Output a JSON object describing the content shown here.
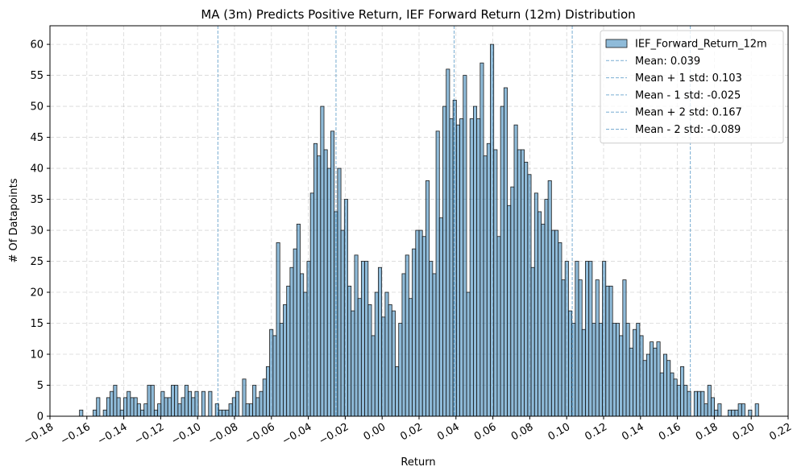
{
  "chart_data": {
    "type": "histogram",
    "title": "MA (3m) Predicts Positive Return, IEF Forward Return (12m) Distribution",
    "x_label": "Return",
    "y_label": "# Of Datapoints",
    "bins": [
      -0.164,
      -0.16216,
      -0.16032,
      -0.15848,
      -0.15664,
      -0.1548,
      -0.15296,
      -0.15112,
      -0.14928,
      -0.14744,
      -0.1456,
      -0.14376,
      -0.14192,
      -0.14008,
      -0.13824,
      -0.1364,
      -0.13456,
      -0.13272,
      -0.13088,
      -0.12904,
      -0.1272,
      -0.12536,
      -0.12352,
      -0.12168,
      -0.11984,
      -0.118,
      -0.11616,
      -0.11432,
      -0.11248,
      -0.11064,
      -0.1088,
      -0.10696,
      -0.10512,
      -0.10328,
      -0.10144,
      -0.0996,
      -0.09776,
      -0.09592,
      -0.09408,
      -0.09224,
      -0.0904,
      -0.08856,
      -0.08672,
      -0.08488,
      -0.08304,
      -0.0812,
      -0.07936,
      -0.07752,
      -0.07568,
      -0.07384,
      -0.072,
      -0.07016,
      -0.06832,
      -0.06648,
      -0.06464,
      -0.0628,
      -0.06096,
      -0.05912,
      -0.05728,
      -0.05544,
      -0.0536,
      -0.05176,
      -0.04992,
      -0.04808,
      -0.04624,
      -0.0444,
      -0.04256,
      -0.04072,
      -0.03888,
      -0.03704,
      -0.0352,
      -0.03336,
      -0.03152,
      -0.02968,
      -0.02784,
      -0.026,
      -0.02416,
      -0.02232,
      -0.02048,
      -0.01864,
      -0.0168,
      -0.01496,
      -0.01312,
      -0.01128,
      -0.00944,
      -0.0076,
      -0.00576,
      -0.00392,
      -0.00208,
      -0.00024,
      0.0016,
      0.00344,
      0.00528,
      0.00712,
      0.00896,
      0.0108,
      0.01264,
      0.01448,
      0.01632,
      0.01816,
      0.02,
      0.02184,
      0.02368,
      0.02552,
      0.02736,
      0.0292,
      0.03104,
      0.03288,
      0.03472,
      0.03656,
      0.0384,
      0.04024,
      0.04208,
      0.04392,
      0.04576,
      0.0476,
      0.04944,
      0.05128,
      0.05312,
      0.05496,
      0.0568,
      0.05864,
      0.06048,
      0.06232,
      0.06416,
      0.066,
      0.06784,
      0.06968,
      0.07152,
      0.07336,
      0.0752,
      0.07704,
      0.07888,
      0.08072,
      0.08256,
      0.0844,
      0.08624,
      0.08808,
      0.08992,
      0.09176,
      0.0936,
      0.09544,
      0.09728,
      0.09912,
      0.10096,
      0.1028,
      0.10464,
      0.10648,
      0.10832,
      0.11016,
      0.112,
      0.11384,
      0.11568,
      0.11752,
      0.11936,
      0.1212,
      0.12304,
      0.12488,
      0.12672,
      0.12856,
      0.1304,
      0.13224,
      0.13408,
      0.13592,
      0.13776,
      0.1396,
      0.14144,
      0.14328,
      0.14512,
      0.14696,
      0.1488,
      0.15064,
      0.15248,
      0.15432,
      0.15616,
      0.158,
      0.15984,
      0.16168,
      0.16352,
      0.16536,
      0.1672,
      0.16904,
      0.17088,
      0.17272,
      0.17456,
      0.1764,
      0.17824,
      0.18008,
      0.18192,
      0.18376,
      0.1856,
      0.18744,
      0.18928,
      0.19112,
      0.19296,
      0.1948,
      0.19664,
      0.19848,
      0.20032,
      0.20216,
      0.204
    ],
    "series": [
      {
        "name": "IEF_Forward_Return_12m",
        "color": "#1f77b4",
        "edgecolor": "#1a1a1a",
        "values": [
          1,
          0,
          0,
          0,
          1,
          3,
          0,
          1,
          3,
          4,
          5,
          3,
          1,
          3,
          4,
          3,
          3,
          2,
          1,
          2,
          5,
          5,
          1,
          2,
          4,
          3,
          3,
          5,
          5,
          2,
          3,
          5,
          4,
          3,
          4,
          0,
          4,
          0,
          4,
          0,
          2,
          1,
          1,
          1,
          2,
          3,
          4,
          0,
          6,
          2,
          2,
          5,
          3,
          4,
          6,
          8,
          14,
          13,
          28,
          15,
          18,
          21,
          24,
          27,
          31,
          23,
          20,
          25,
          36,
          44,
          42,
          50,
          43,
          40,
          46,
          33,
          40,
          30,
          35,
          21,
          17,
          26,
          19,
          25,
          25,
          18,
          13,
          20,
          24,
          16,
          20,
          18,
          17,
          8,
          15,
          23,
          26,
          19,
          27,
          30,
          30,
          29,
          38,
          25,
          23,
          46,
          32,
          50,
          56,
          48,
          51,
          47,
          48,
          55,
          20,
          48,
          50,
          48,
          57,
          42,
          44,
          60,
          43,
          29,
          50,
          53,
          34,
          37,
          47,
          43,
          43,
          41,
          39,
          24,
          36,
          33,
          31,
          35,
          38,
          30,
          30,
          28,
          22,
          25,
          17,
          15,
          25,
          22,
          14,
          25,
          25,
          15,
          22,
          15,
          25,
          21,
          21,
          15,
          15,
          13,
          22,
          15,
          11,
          14,
          15,
          13,
          9,
          10,
          12,
          11,
          12,
          7,
          10,
          9,
          7,
          6,
          5,
          8,
          5,
          4,
          0,
          4,
          4,
          4,
          2,
          5,
          3,
          1,
          2,
          0,
          0,
          1,
          1,
          1,
          2,
          2,
          0,
          1,
          0,
          2
        ]
      }
    ],
    "vlines": [
      {
        "label": "Mean: 0.039",
        "value": 0.039,
        "color": "#1f77b4"
      },
      {
        "label": "Mean + 1 std: 0.103",
        "value": 0.103,
        "color": "#1f77b4"
      },
      {
        "label": "Mean - 1 std: -0.025",
        "value": -0.025,
        "color": "#1f77b4"
      },
      {
        "label": "Mean + 2 std: 0.167",
        "value": 0.167,
        "color": "#1f77b4"
      },
      {
        "label": "Mean - 2 std: -0.089",
        "value": -0.089,
        "color": "#1f77b4"
      }
    ],
    "xlim": [
      -0.18,
      0.22
    ],
    "xticks": [
      {
        "value": -0.18,
        "label": "−0.18"
      },
      {
        "value": -0.16,
        "label": "−0.16"
      },
      {
        "value": -0.14,
        "label": "−0.14"
      },
      {
        "value": -0.12,
        "label": "−0.12"
      },
      {
        "value": -0.1,
        "label": "−0.10"
      },
      {
        "value": -0.08,
        "label": "−0.08"
      },
      {
        "value": -0.06,
        "label": "−0.06"
      },
      {
        "value": -0.04,
        "label": "−0.04"
      },
      {
        "value": -0.02,
        "label": "−0.02"
      },
      {
        "value": 0,
        "label": "0.00"
      },
      {
        "value": 0.02,
        "label": "0.02"
      },
      {
        "value": 0.04,
        "label": "0.04"
      },
      {
        "value": 0.06,
        "label": "0.06"
      },
      {
        "value": 0.08,
        "label": "0.08"
      },
      {
        "value": 0.1,
        "label": "0.10"
      },
      {
        "value": 0.12,
        "label": "0.12"
      },
      {
        "value": 0.14,
        "label": "0.14"
      },
      {
        "value": 0.16,
        "label": "0.16"
      },
      {
        "value": 0.18,
        "label": "0.18"
      },
      {
        "value": 0.2,
        "label": "0.20"
      },
      {
        "value": 0.22,
        "label": "0.22"
      }
    ],
    "ylim": [
      0,
      63
    ],
    "yticks": [
      0,
      5,
      10,
      15,
      20,
      25,
      30,
      35,
      40,
      45,
      50,
      55,
      60
    ],
    "grid": true,
    "legend": "upper right"
  }
}
